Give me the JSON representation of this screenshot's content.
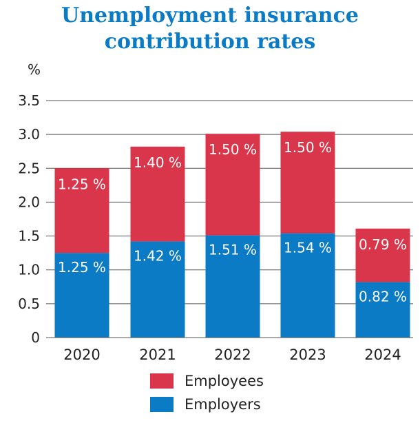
{
  "chart_data": {
    "type": "bar",
    "stacked": true,
    "title": "Unemployment insurance contribution rates",
    "title_lines": [
      "Unemployment insurance",
      "contribution rates"
    ],
    "ylabel": "%",
    "ylim": [
      0,
      3.5
    ],
    "yticks": [
      "0",
      "0.5",
      "1.0",
      "1.5",
      "2.0",
      "2.5",
      "3.0",
      "3.5"
    ],
    "grid": true,
    "legend_position": "bottom",
    "categories": [
      "2020",
      "2021",
      "2022",
      "2023",
      "2024"
    ],
    "series": [
      {
        "name": "Employers",
        "color": "#0a7bc4",
        "values": [
          1.25,
          1.42,
          1.51,
          1.54,
          0.82
        ],
        "labels": [
          "1.25 %",
          "1.42 %",
          "1.51 %",
          "1.54 %",
          "0.82 %"
        ]
      },
      {
        "name": "Employees",
        "color": "#d9364b",
        "values": [
          1.25,
          1.4,
          1.5,
          1.5,
          0.79
        ],
        "labels": [
          "1.25 %",
          "1.40 %",
          "1.50 %",
          "1.50 %",
          "0.79 %"
        ]
      }
    ],
    "legend_order": [
      "Employees",
      "Employers"
    ]
  }
}
